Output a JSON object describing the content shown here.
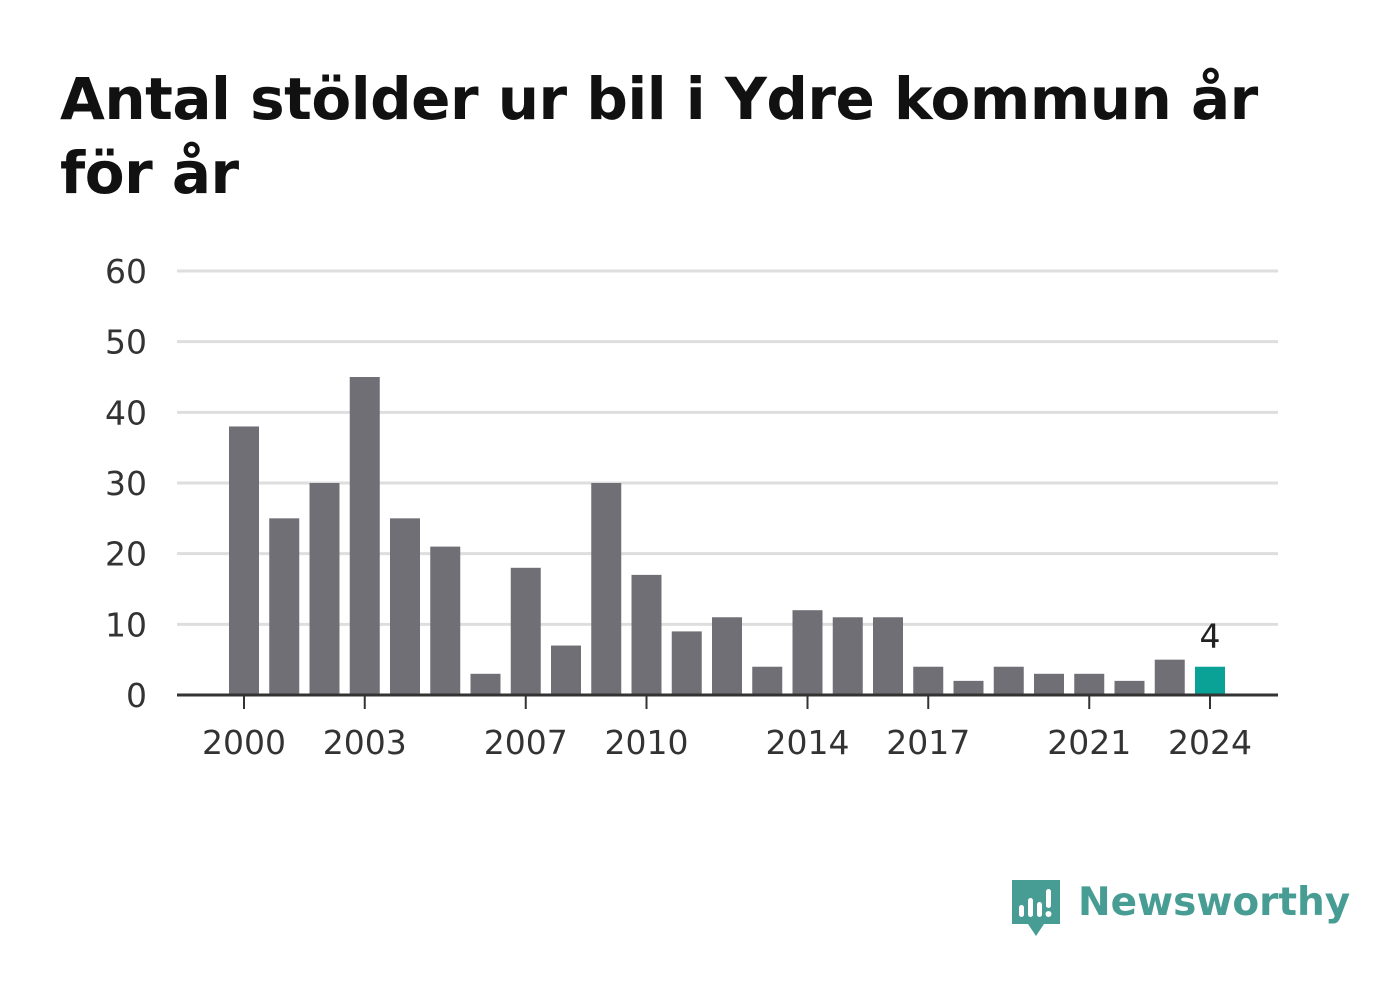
{
  "title": "Antal stölder ur bil i Ydre kommun år för år",
  "colors": {
    "bar": "#706f75",
    "highlight": "#0aa296",
    "grid": "#dedede",
    "axis": "#333333",
    "brand": "#479d93"
  },
  "brand": {
    "name": "Newsworthy",
    "icon": "newsworthy-bar-chart-icon"
  },
  "chart_data": {
    "type": "bar",
    "title": "Antal stölder ur bil i Ydre kommun år för år",
    "xlabel": "",
    "ylabel": "",
    "categories": [
      2000,
      2001,
      2002,
      2003,
      2004,
      2005,
      2006,
      2007,
      2008,
      2009,
      2010,
      2011,
      2012,
      2013,
      2014,
      2015,
      2016,
      2017,
      2018,
      2019,
      2020,
      2021,
      2022,
      2023,
      2024
    ],
    "values": [
      38,
      25,
      30,
      45,
      25,
      21,
      3,
      18,
      7,
      30,
      17,
      9,
      11,
      4,
      12,
      11,
      11,
      4,
      2,
      4,
      3,
      3,
      2,
      5,
      4
    ],
    "highlight": 2024,
    "highlight_label": "4",
    "ylim": [
      0,
      60
    ],
    "yticks": [
      0,
      10,
      20,
      30,
      40,
      50,
      60
    ],
    "xticks": [
      2000,
      2003,
      2007,
      2010,
      2014,
      2017,
      2021,
      2024
    ],
    "grid": true,
    "legend": "none"
  }
}
